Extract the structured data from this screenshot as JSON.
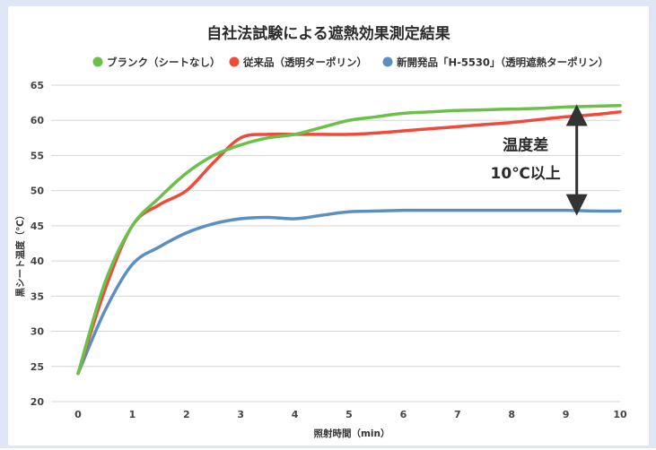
{
  "chart_data": {
    "type": "line",
    "title": "自社法試験による遮熱効果測定結果",
    "xlabel": "照射時間（min）",
    "ylabel": "黒シート温度（℃）",
    "xlim": [
      0,
      10
    ],
    "ylim": [
      20,
      65
    ],
    "x": [
      0,
      0.5,
      1,
      1.5,
      2,
      2.5,
      3,
      3.5,
      4,
      4.5,
      5,
      5.5,
      6,
      6.5,
      7,
      7.5,
      8,
      8.5,
      9,
      9.5,
      10
    ],
    "xticks": [
      0,
      1,
      2,
      3,
      4,
      5,
      6,
      7,
      8,
      9,
      10
    ],
    "yticks": [
      20,
      25,
      30,
      35,
      40,
      45,
      50,
      55,
      60,
      65
    ],
    "grid": "horizontal",
    "legend": "top",
    "series": [
      {
        "name": "ブランク（シートなし）",
        "color": "#6cc04a",
        "values": [
          24,
          37,
          45,
          49,
          52.5,
          55,
          56.5,
          57.5,
          58,
          59,
          60,
          60.5,
          61,
          61.2,
          61.4,
          61.5,
          61.6,
          61.7,
          61.9,
          62,
          62.1
        ]
      },
      {
        "name": "従来品（透明ターポリン）",
        "color": "#ee4b3a",
        "values": [
          24,
          36,
          45,
          48,
          50,
          54,
          57.5,
          58,
          58,
          58,
          58,
          58.2,
          58.5,
          58.8,
          59.1,
          59.4,
          59.7,
          60.1,
          60.5,
          60.8,
          61.2
        ]
      },
      {
        "name": "新開発品「H-5530」（透明遮熱ターポリン）",
        "color": "#5b8fbf",
        "values": [
          24,
          33,
          39.5,
          42,
          44,
          45.3,
          46,
          46.2,
          46,
          46.5,
          47,
          47.1,
          47.2,
          47.2,
          47.2,
          47.2,
          47.2,
          47.2,
          47.2,
          47.1,
          47.1
        ]
      }
    ],
    "annotation": {
      "line1": "温度差",
      "line2": "10℃以上",
      "from": 47.2,
      "to": 61.5,
      "at_x": 9.2
    }
  }
}
